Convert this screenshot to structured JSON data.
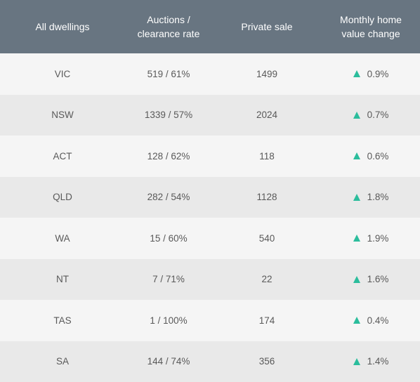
{
  "accent_color": "#2bbd9c",
  "header_color": "#687581",
  "columns": {
    "dwellings": "All dwellings",
    "auctions_line1": "Auctions /",
    "auctions_line2": "clearance rate",
    "private_sale": "Private sale",
    "change_line1": "Monthly home",
    "change_line2": "value change"
  },
  "rows": [
    {
      "state": "VIC",
      "auctions": "519 / 61%",
      "private": "1499",
      "change": "0.9%",
      "trend_icon": "triangle-up-icon"
    },
    {
      "state": "NSW",
      "auctions": "1339 / 57%",
      "private": "2024",
      "change": "0.7%",
      "trend_icon": "triangle-up-icon"
    },
    {
      "state": "ACT",
      "auctions": "128 / 62%",
      "private": "118",
      "change": "0.6%",
      "trend_icon": "triangle-up-icon"
    },
    {
      "state": "QLD",
      "auctions": "282 / 54%",
      "private": "1128",
      "change": "1.8%",
      "trend_icon": "triangle-up-icon"
    },
    {
      "state": "WA",
      "auctions": "15 / 60%",
      "private": "540",
      "change": "1.9%",
      "trend_icon": "triangle-up-icon"
    },
    {
      "state": "NT",
      "auctions": "7 / 71%",
      "private": "22",
      "change": "1.6%",
      "trend_icon": "triangle-up-icon"
    },
    {
      "state": "TAS",
      "auctions": "1 / 100%",
      "private": "174",
      "change": "0.4%",
      "trend_icon": "triangle-up-icon"
    },
    {
      "state": "SA",
      "auctions": "144 / 74%",
      "private": "356",
      "change": "1.4%",
      "trend_icon": "triangle-up-icon"
    }
  ]
}
